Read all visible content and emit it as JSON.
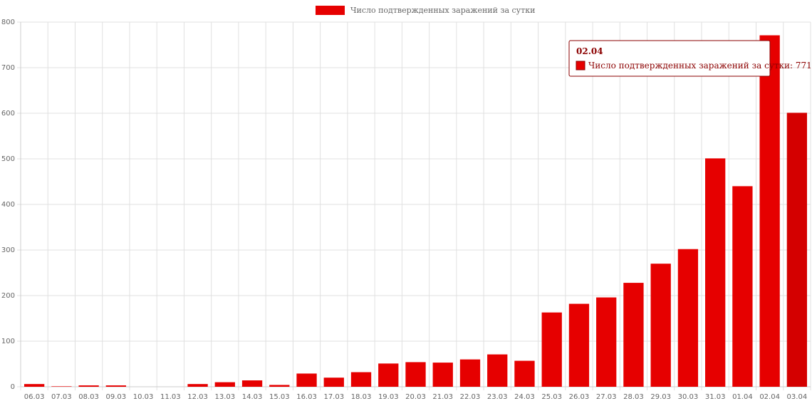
{
  "chart_data": {
    "type": "bar",
    "categories": [
      "06.03",
      "07.03",
      "08.03",
      "09.03",
      "10.03",
      "11.03",
      "12.03",
      "13.03",
      "14.03",
      "15.03",
      "16.03",
      "17.03",
      "18.03",
      "19.03",
      "20.03",
      "21.03",
      "22.03",
      "23.03",
      "24.03",
      "25.03",
      "26.03",
      "27.03",
      "28.03",
      "29.03",
      "30.03",
      "31.03",
      "01.04",
      "02.04",
      "03.04"
    ],
    "series": [
      {
        "name": "Число подтвержденных заражений за сутки",
        "values": [
          6,
          1,
          3,
          3,
          0,
          0,
          6,
          10,
          14,
          4,
          29,
          20,
          32,
          51,
          54,
          53,
          60,
          71,
          57,
          163,
          182,
          196,
          228,
          270,
          302,
          501,
          440,
          771,
          601
        ]
      }
    ],
    "ylim": [
      0,
      800
    ],
    "yticks": [
      0,
      100,
      200,
      300,
      400,
      500,
      600,
      700,
      800
    ],
    "grid": true,
    "legend": "top-center",
    "colors": {
      "bar": "#e60000",
      "bar_highlight": "#d40000",
      "tooltip_border": "#8b0000",
      "grid": "#e0e0e0"
    },
    "tooltip": {
      "title": "02.04",
      "text": "Число подтвержденных заражений за сутки: 771",
      "category": "02.04"
    },
    "highlighted_category": "03.04"
  }
}
